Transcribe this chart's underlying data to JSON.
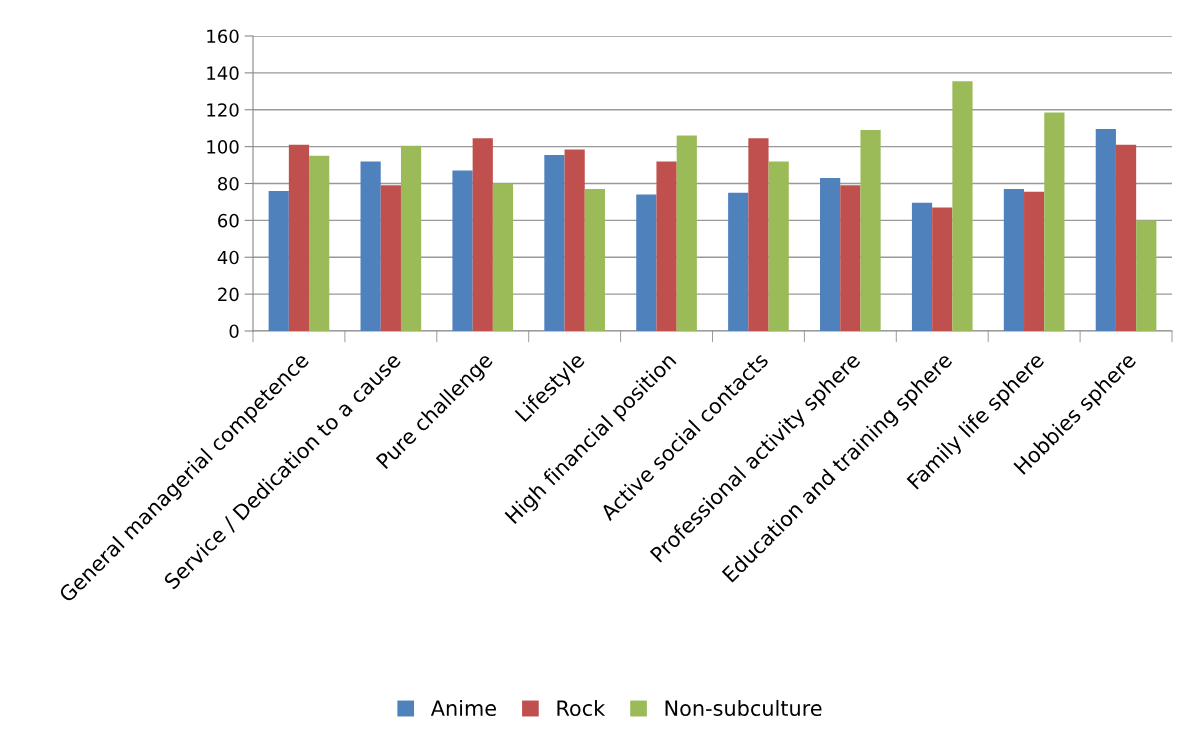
{
  "chart_data": {
    "type": "bar",
    "categories": [
      "General managerial competence",
      "Service / Dedication to a cause",
      "Pure challenge",
      "Lifestyle",
      "High financial position",
      "Active social contacts",
      "Professional activity sphere",
      "Education and training sphere",
      "Family life sphere",
      "Hobbies sphere"
    ],
    "series": [
      {
        "name": "Anime",
        "color": "#4f81bd",
        "values": [
          76,
          92,
          87,
          95.5,
          74,
          75,
          83,
          69.5,
          77,
          109.5
        ]
      },
      {
        "name": "Rock",
        "color": "#c0504d",
        "values": [
          101,
          79,
          104.5,
          98.5,
          92,
          104.5,
          79,
          67,
          75.5,
          101
        ]
      },
      {
        "name": "Non-subculture",
        "color": "#9bbb59",
        "values": [
          95,
          100.5,
          80,
          77,
          106,
          92,
          109,
          135.5,
          118.5,
          60
        ]
      }
    ],
    "ylim": [
      0,
      160
    ],
    "yticks": [
      0,
      20,
      40,
      60,
      80,
      100,
      120,
      140,
      160
    ],
    "grid": "y",
    "legend": "bottom"
  }
}
